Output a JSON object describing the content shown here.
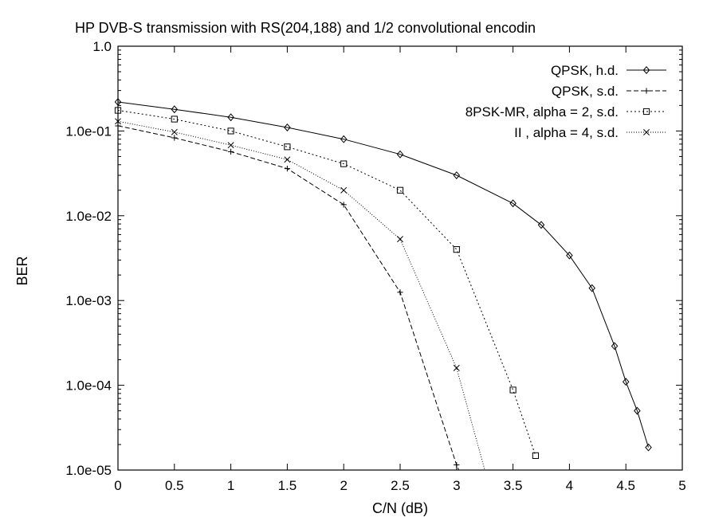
{
  "chart_data": {
    "type": "line",
    "title": "HP DVB-S transmission with RS(204,188) and 1/2 convolutional encodin",
    "xlabel": "C/N  (dB)",
    "ylabel": "BER",
    "xlim": [
      0,
      5
    ],
    "ylim": [
      1e-05,
      1.0
    ],
    "y_scale": "log",
    "grid": false,
    "legend_position": "top-right",
    "x_ticks": [
      "0",
      "0.5",
      "1",
      "1.5",
      "2",
      "2.5",
      "3",
      "3.5",
      "4",
      "4.5",
      "5"
    ],
    "y_ticks": [
      "1.0e-05",
      "1.0e-04",
      "1.0e-03",
      "1.0e-02",
      "1.0e-01",
      "1.0"
    ],
    "y_tick_values": [
      1e-05,
      0.0001,
      0.001,
      0.01,
      0.1,
      1.0
    ],
    "series": [
      {
        "name": "QPSK, h.d.",
        "marker": "diamond",
        "dash": "",
        "points": [
          [
            0,
            0.22
          ],
          [
            0.5,
            0.18
          ],
          [
            1,
            0.145
          ],
          [
            1.5,
            0.11
          ],
          [
            2,
            0.08
          ],
          [
            2.5,
            0.053
          ],
          [
            3,
            0.03
          ],
          [
            3.5,
            0.014
          ],
          [
            3.75,
            0.0078
          ],
          [
            4,
            0.0034
          ],
          [
            4.2,
            0.0014
          ],
          [
            4.4,
            0.00029
          ],
          [
            4.5,
            0.00011
          ],
          [
            4.6,
            5e-05
          ],
          [
            4.7,
            1.85e-05
          ]
        ]
      },
      {
        "name": "QPSK, s.d.",
        "marker": "plus",
        "dash": "6,3",
        "points": [
          [
            0,
            0.115
          ],
          [
            0.5,
            0.083
          ],
          [
            1,
            0.057
          ],
          [
            1.5,
            0.036
          ],
          [
            2,
            0.0135
          ],
          [
            2.5,
            0.00125
          ],
          [
            3,
            1.15e-05
          ],
          [
            3.02,
            1e-05
          ]
        ]
      },
      {
        "name": "8PSK-MR, alpha = 2, s.d.",
        "marker": "square",
        "dash": "2,3",
        "points": [
          [
            0,
            0.175
          ],
          [
            0.5,
            0.138
          ],
          [
            1,
            0.1
          ],
          [
            1.5,
            0.065
          ],
          [
            2,
            0.041
          ],
          [
            2.5,
            0.02
          ],
          [
            3,
            0.004
          ],
          [
            3.5,
            8.8e-05
          ],
          [
            3.7,
            1.48e-05
          ]
        ]
      },
      {
        "name": "II  , alpha = 4, s.d.",
        "marker": "cross",
        "dash": "1,2",
        "points": [
          [
            0,
            0.13
          ],
          [
            0.5,
            0.097
          ],
          [
            1,
            0.068
          ],
          [
            1.5,
            0.046
          ],
          [
            2,
            0.02
          ],
          [
            2.5,
            0.0053
          ],
          [
            3,
            0.00016
          ],
          [
            3.25,
            1e-05
          ]
        ]
      }
    ]
  }
}
